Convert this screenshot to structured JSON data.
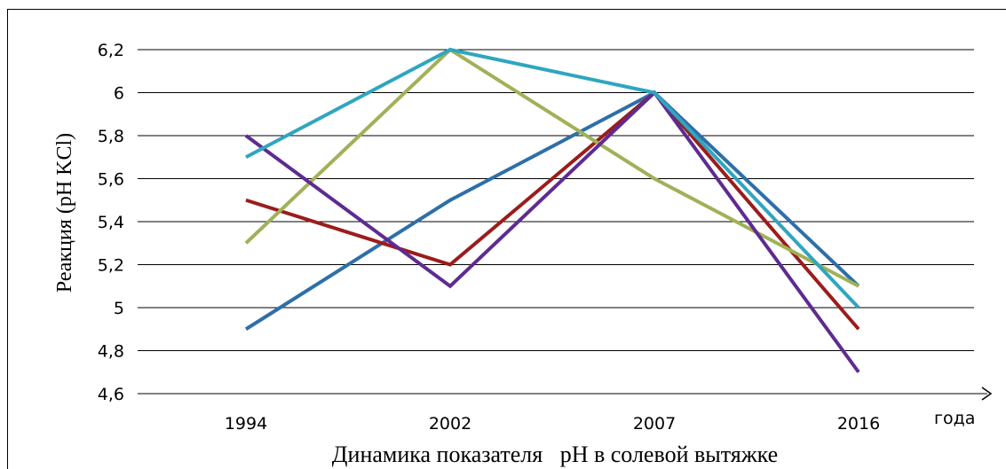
{
  "chart_data": {
    "type": "line",
    "title": "",
    "xlabel": "Динамика показателя   pH в солевой вытяжке",
    "ylabel": "Реакция (pH KCl)",
    "x_axis_unit_label": "года",
    "categories": [
      "1994",
      "2002",
      "2007",
      "2016"
    ],
    "ylim": [
      4.6,
      6.3
    ],
    "yticks": [
      4.6,
      4.8,
      5,
      5.2,
      5.4,
      5.6,
      5.8,
      6,
      6.2
    ],
    "ytick_labels": [
      "4,6",
      "4,8",
      "5",
      "5,2",
      "5,4",
      "5,6",
      "5,8",
      "6",
      "6,2"
    ],
    "grid": true,
    "legend": "none",
    "series": [
      {
        "color": "#2d6fa8",
        "values": [
          4.9,
          5.5,
          6.0,
          5.1
        ]
      },
      {
        "color": "#9b1c1c",
        "values": [
          5.5,
          5.2,
          6.0,
          4.9
        ]
      },
      {
        "color": "#a0b158",
        "values": [
          5.3,
          6.2,
          5.6,
          5.1
        ]
      },
      {
        "color": "#5e2b91",
        "values": [
          5.8,
          5.1,
          6.0,
          4.7
        ]
      },
      {
        "color": "#2fa6bf",
        "values": [
          5.7,
          6.2,
          6.0,
          5.0
        ]
      }
    ]
  }
}
